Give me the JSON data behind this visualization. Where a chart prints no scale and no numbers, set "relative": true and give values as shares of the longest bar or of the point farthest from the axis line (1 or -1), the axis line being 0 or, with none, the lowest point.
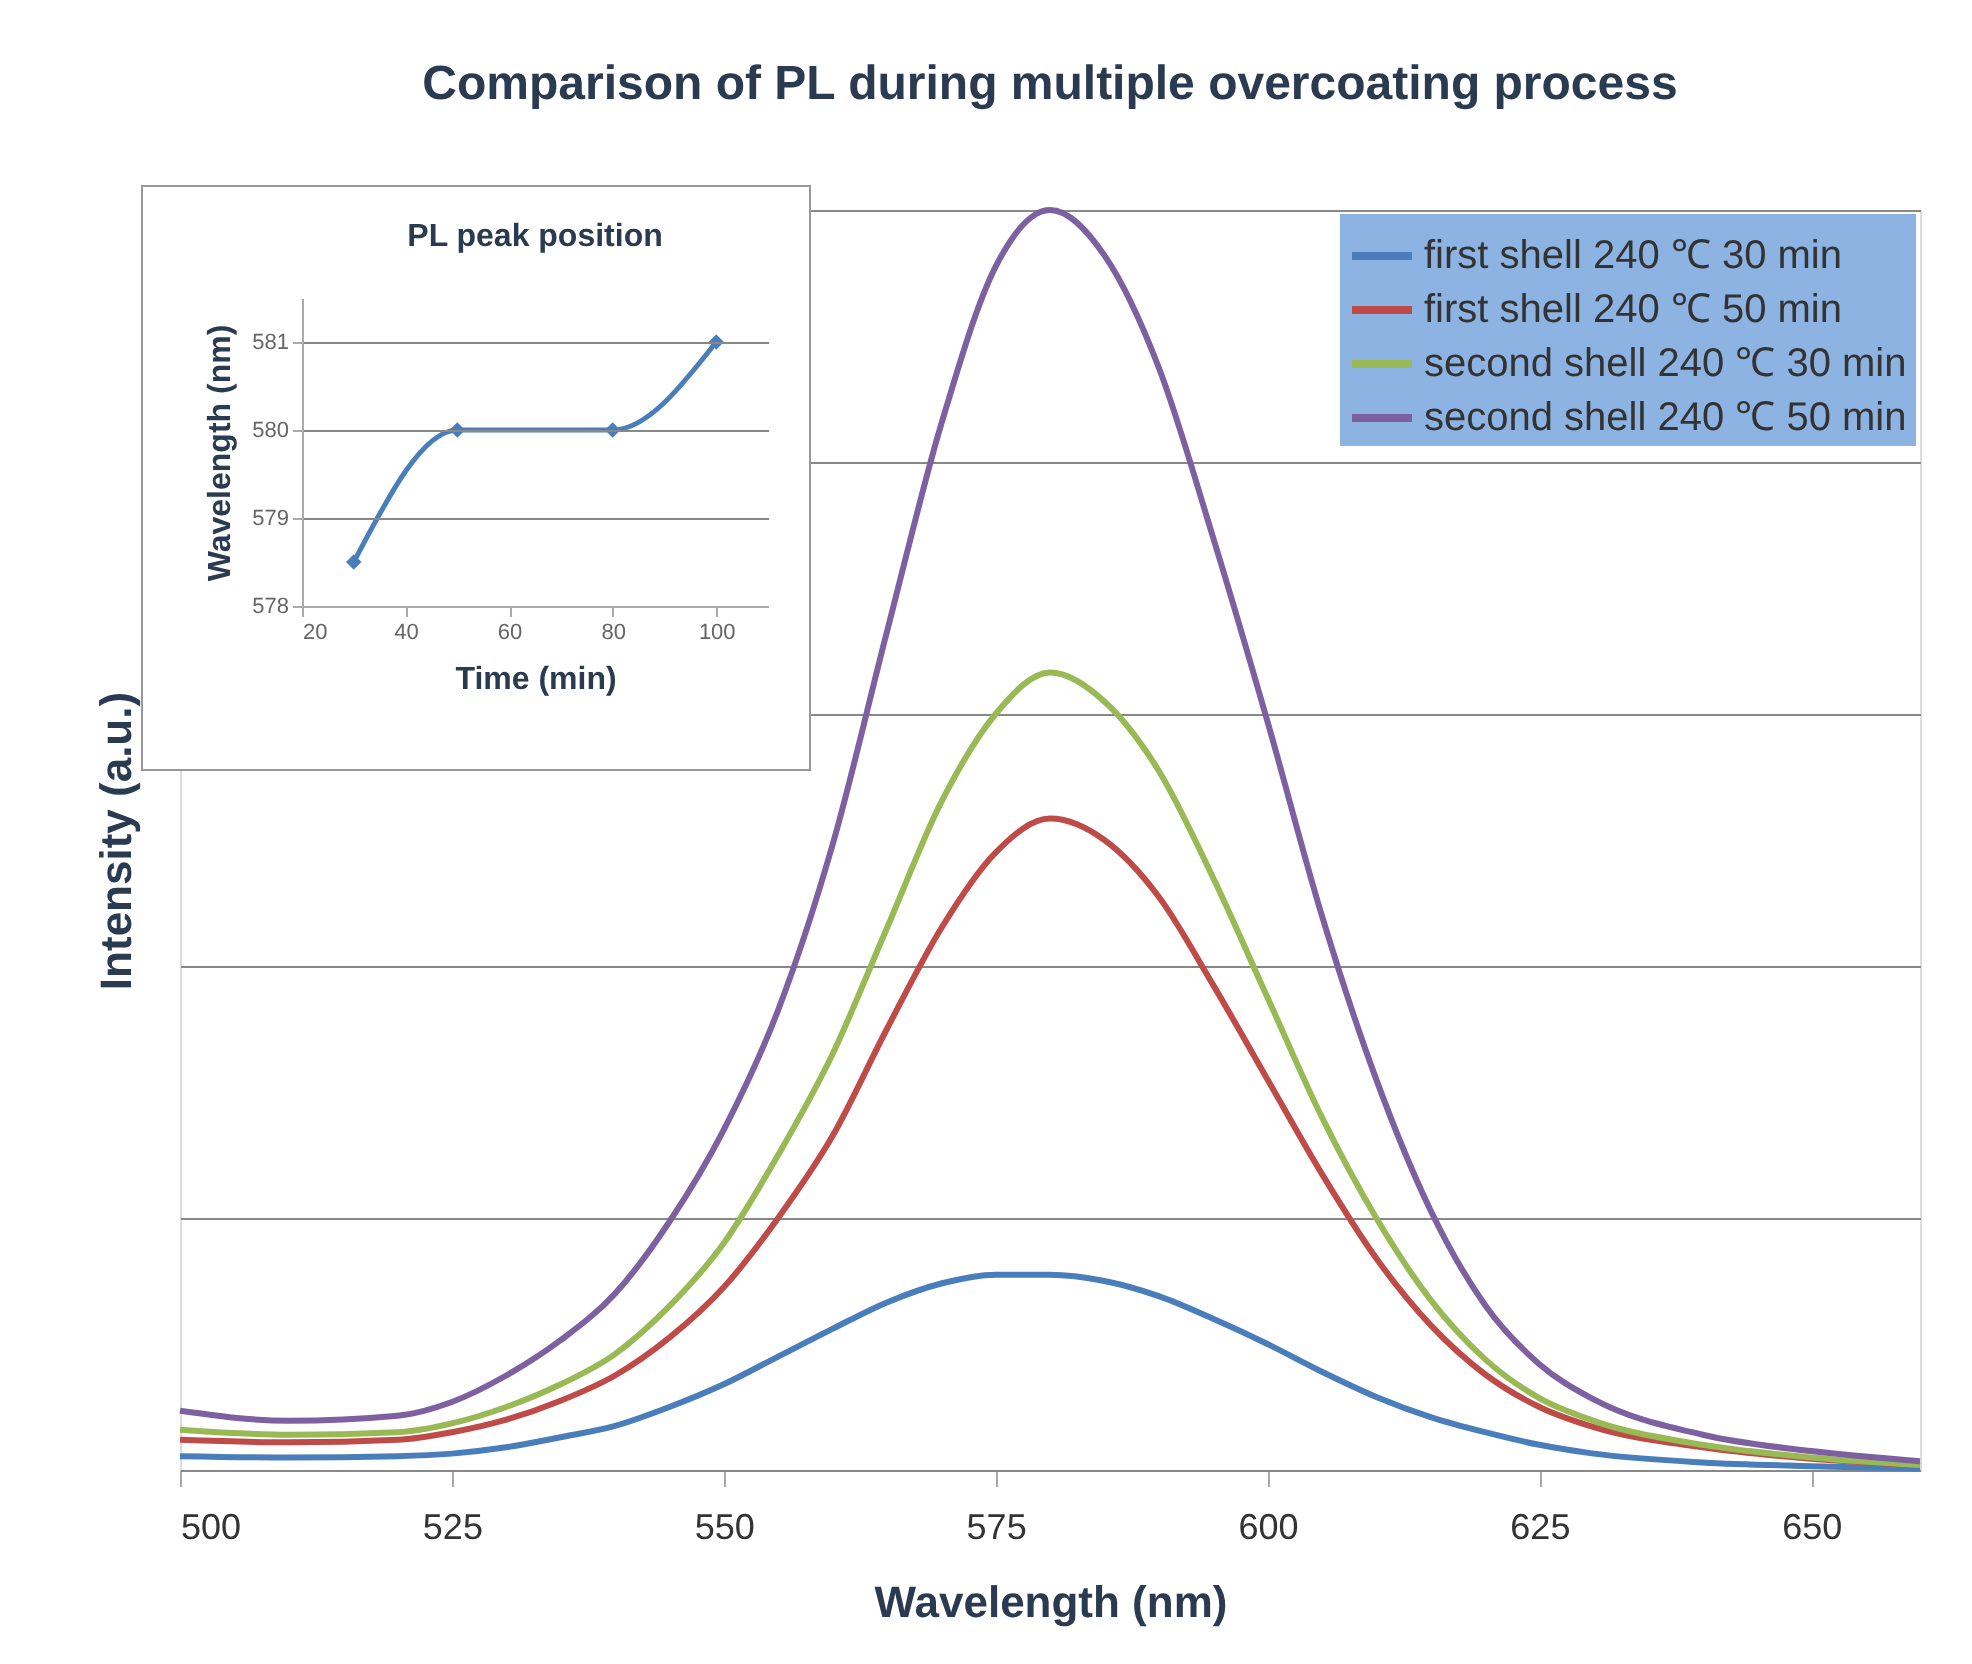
{
  "chart_data": [
    {
      "type": "line",
      "title": "Comparison of PL during multiple overcoating process",
      "xlabel": "Wavelength (nm)",
      "ylabel": "Intensity (a.u.)",
      "relative": true,
      "x": [
        500,
        510,
        520,
        525,
        530,
        535,
        540,
        545,
        550,
        555,
        560,
        565,
        570,
        575,
        580,
        585,
        590,
        595,
        600,
        605,
        610,
        615,
        620,
        625,
        630,
        640,
        650,
        660
      ],
      "xlim": [
        500,
        660
      ],
      "xticks": [
        500,
        525,
        550,
        575,
        600,
        625,
        650
      ],
      "grid": "y",
      "legend": "top right",
      "series": [
        {
          "name": "first shell 240 ℃ 30 min",
          "color": "#4a7ebb",
          "values": [
            0.011,
            0.01,
            0.011,
            0.013,
            0.018,
            0.026,
            0.035,
            0.05,
            0.068,
            0.09,
            0.112,
            0.133,
            0.148,
            0.155,
            0.155,
            0.15,
            0.138,
            0.12,
            0.1,
            0.078,
            0.058,
            0.042,
            0.03,
            0.02,
            0.013,
            0.006,
            0.003,
            0.001
          ]
        },
        {
          "name": "first shell 240 ℃ 50 min",
          "color": "#be4b48",
          "values": [
            0.024,
            0.022,
            0.024,
            0.03,
            0.04,
            0.055,
            0.075,
            0.105,
            0.145,
            0.2,
            0.265,
            0.35,
            0.43,
            0.49,
            0.517,
            0.5,
            0.455,
            0.385,
            0.31,
            0.235,
            0.168,
            0.115,
            0.076,
            0.05,
            0.034,
            0.018,
            0.009,
            0.004
          ]
        },
        {
          "name": "second shell 240 ℃ 30 min",
          "color": "#98b954",
          "values": [
            0.032,
            0.028,
            0.03,
            0.037,
            0.05,
            0.068,
            0.092,
            0.13,
            0.18,
            0.25,
            0.33,
            0.43,
            0.53,
            0.6,
            0.633,
            0.61,
            0.555,
            0.47,
            0.375,
            0.28,
            0.2,
            0.135,
            0.088,
            0.057,
            0.039,
            0.02,
            0.01,
            0.004
          ]
        },
        {
          "name": "second shell 240 ℃ 50 min",
          "color": "#7d60a0",
          "values": [
            0.047,
            0.039,
            0.043,
            0.054,
            0.075,
            0.103,
            0.14,
            0.197,
            0.27,
            0.365,
            0.496,
            0.665,
            0.83,
            0.955,
            1,
            0.964,
            0.875,
            0.74,
            0.594,
            0.44,
            0.31,
            0.206,
            0.131,
            0.084,
            0.056,
            0.028,
            0.015,
            0.007
          ]
        }
      ]
    },
    {
      "type": "line",
      "title": "PL peak position",
      "xlabel": "Time (min)",
      "ylabel": "Wavelength (nm)",
      "x": [
        30,
        50,
        80,
        100
      ],
      "xlim": [
        20,
        110
      ],
      "xticks": [
        20,
        40,
        60,
        80,
        100
      ],
      "ylim": [
        578,
        581.5
      ],
      "yticks": [
        578,
        579,
        580,
        581
      ],
      "grid": "y",
      "marker": "diamond",
      "series": [
        {
          "color": "#4a7ebb",
          "values": [
            578.5,
            580,
            580,
            581
          ]
        }
      ]
    }
  ]
}
